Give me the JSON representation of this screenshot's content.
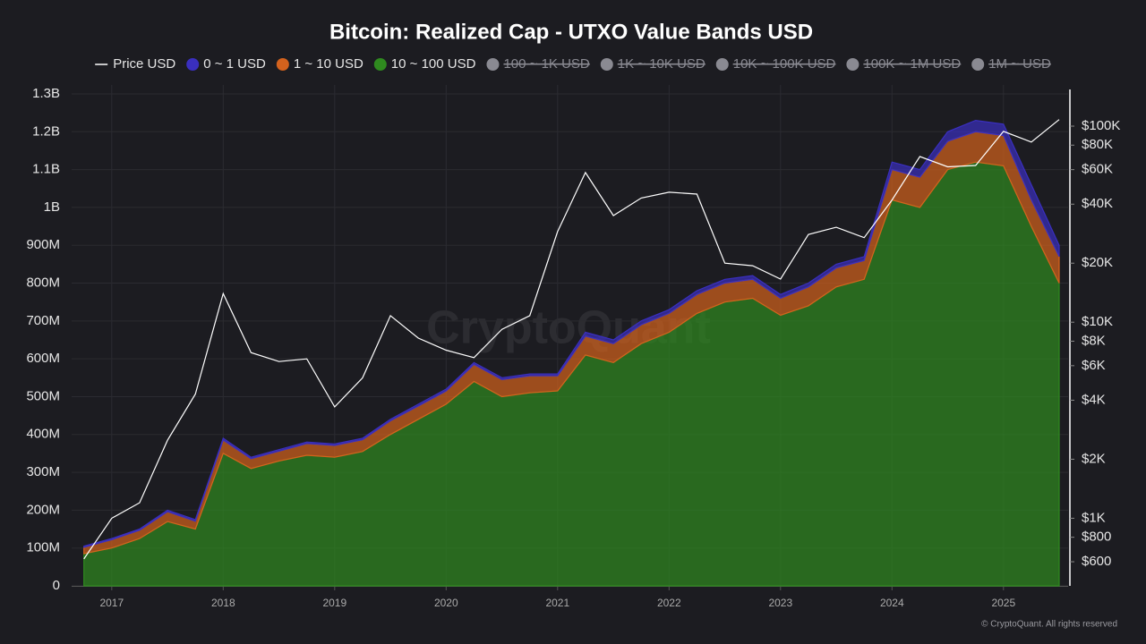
{
  "chart_data": {
    "type": "stacked-area",
    "title": "Bitcoin: Realized Cap - UTXO Value Bands USD",
    "watermark": "CryptoQuant",
    "footer": "© CryptoQuant. All rights reserved",
    "x": [
      2016.75,
      2017.0,
      2017.25,
      2017.5,
      2017.75,
      2018.0,
      2018.25,
      2018.5,
      2018.75,
      2019.0,
      2019.25,
      2019.5,
      2019.75,
      2020.0,
      2020.25,
      2020.5,
      2020.75,
      2021.0,
      2021.25,
      2021.5,
      2021.75,
      2022.0,
      2022.25,
      2022.5,
      2022.75,
      2023.0,
      2023.25,
      2023.5,
      2023.75,
      2024.0,
      2024.25,
      2024.5,
      2024.75,
      2025.0,
      2025.25,
      2025.5
    ],
    "xlim": [
      2016.64,
      2025.58
    ],
    "xticks": [
      2017,
      2018,
      2019,
      2020,
      2021,
      2022,
      2023,
      2024,
      2025
    ],
    "ylim": [
      0,
      1300000000
    ],
    "yticks": [
      {
        "value": 0,
        "label": "0"
      },
      {
        "value": 100000000,
        "label": "100M"
      },
      {
        "value": 200000000,
        "label": "200M"
      },
      {
        "value": 300000000,
        "label": "300M"
      },
      {
        "value": 400000000,
        "label": "400M"
      },
      {
        "value": 500000000,
        "label": "500M"
      },
      {
        "value": 600000000,
        "label": "600M"
      },
      {
        "value": 700000000,
        "label": "700M"
      },
      {
        "value": 800000000,
        "label": "800M"
      },
      {
        "value": 900000000,
        "label": "900M"
      },
      {
        "value": 1000000000,
        "label": "1B"
      },
      {
        "value": 1100000000,
        "label": "1.1B"
      },
      {
        "value": 1200000000,
        "label": "1.2B"
      },
      {
        "value": 1300000000,
        "label": "1.3B"
      }
    ],
    "y2lim": [
      452,
      146000
    ],
    "y2_log": true,
    "y2ticks": [
      {
        "value": 100000,
        "label": "$100K"
      },
      {
        "value": 80000,
        "label": "$80K"
      },
      {
        "value": 60000,
        "label": "$60K"
      },
      {
        "value": 40000,
        "label": "$40K"
      },
      {
        "value": 20000,
        "label": "$20K"
      },
      {
        "value": 10000,
        "label": "$10K"
      },
      {
        "value": 8000,
        "label": "$8K"
      },
      {
        "value": 6000,
        "label": "$6K"
      },
      {
        "value": 4000,
        "label": "$4K"
      },
      {
        "value": 2000,
        "label": "$2K"
      },
      {
        "value": 1000,
        "label": "$1K"
      },
      {
        "value": 800,
        "label": "$800"
      },
      {
        "value": 600,
        "label": "$600"
      }
    ],
    "grid": true,
    "series": [
      {
        "name": "Price USD",
        "color": "#ffffff",
        "axis": "y2",
        "kind": "line",
        "values": [
          620,
          1000,
          1200,
          2500,
          4300,
          14000,
          7000,
          6300,
          6500,
          3700,
          5200,
          10800,
          8300,
          7200,
          6600,
          9200,
          10800,
          29000,
          58000,
          35000,
          43000,
          46000,
          45000,
          20000,
          19400,
          16600,
          28000,
          30500,
          27000,
          42000,
          70000,
          62000,
          63000,
          94000,
          83000,
          108000
        ]
      },
      {
        "name": "0 ~ 1 USD",
        "color": "#3a2fbf",
        "kind": "area",
        "values": [
          3000000,
          3000000,
          3000000,
          4000000,
          4000000,
          5000000,
          4000000,
          4000000,
          4000000,
          4000000,
          4000000,
          4000000,
          5000000,
          5000000,
          5000000,
          5000000,
          5000000,
          5000000,
          10000000,
          10000000,
          10000000,
          10000000,
          10000000,
          10000000,
          10000000,
          10000000,
          10000000,
          10000000,
          10000000,
          20000000,
          20000000,
          25000000,
          30000000,
          30000000,
          40000000,
          30000000
        ]
      },
      {
        "name": "1 ~ 10 USD",
        "color": "#d4621d",
        "kind": "area",
        "values": [
          17000000,
          22000000,
          22000000,
          26000000,
          21000000,
          35000000,
          26000000,
          26000000,
          31000000,
          31000000,
          31000000,
          36000000,
          35000000,
          35000000,
          45000000,
          45000000,
          45000000,
          40000000,
          50000000,
          50000000,
          50000000,
          50000000,
          50000000,
          50000000,
          50000000,
          45000000,
          50000000,
          50000000,
          50000000,
          80000000,
          80000000,
          75000000,
          80000000,
          80000000,
          70000000,
          70000000
        ]
      },
      {
        "name": "10 ~ 100 USD",
        "color": "#2f8a1f",
        "kind": "area",
        "values": [
          85000000,
          100000000,
          125000000,
          170000000,
          150000000,
          350000000,
          310000000,
          330000000,
          345000000,
          340000000,
          355000000,
          400000000,
          440000000,
          480000000,
          540000000,
          500000000,
          510000000,
          515000000,
          610000000,
          590000000,
          640000000,
          670000000,
          720000000,
          750000000,
          760000000,
          715000000,
          740000000,
          790000000,
          810000000,
          1020000000,
          1000000000,
          1100000000,
          1120000000,
          1110000000,
          950000000,
          800000000
        ]
      }
    ],
    "stack_order": [
      3,
      2,
      1
    ],
    "hidden_legend": [
      "100 ~ 1K USD",
      "1K ~ 10K USD",
      "10K ~ 100K USD",
      "100K ~ 1M USD",
      "1M ~ USD"
    ]
  }
}
